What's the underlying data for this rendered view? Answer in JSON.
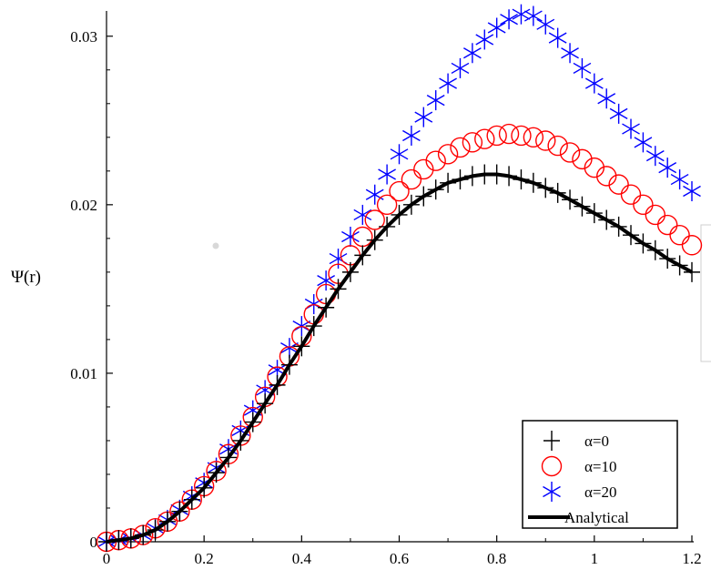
{
  "chart_data": {
    "type": "scatter",
    "title": "",
    "xlabel": "",
    "ylabel": "Ψ(r)",
    "xlim": [
      0,
      1.2
    ],
    "ylim": [
      0,
      0.0315
    ],
    "grid": false,
    "legend_position": "bottom-right",
    "x_ticks": [
      {
        "value": 0,
        "label": "0"
      },
      {
        "value": 0.2,
        "label": "0.2"
      },
      {
        "value": 0.4,
        "label": "0.4"
      },
      {
        "value": 0.6,
        "label": "0.6"
      },
      {
        "value": 0.8,
        "label": "0.8"
      },
      {
        "value": 1.0,
        "label": "1"
      },
      {
        "value": 1.2,
        "label": "1.2"
      }
    ],
    "y_ticks": [
      {
        "value": 0,
        "label": "0"
      },
      {
        "value": 0.01,
        "label": "0.01"
      },
      {
        "value": 0.02,
        "label": "0.02"
      },
      {
        "value": 0.03,
        "label": "0.03"
      }
    ],
    "x": [
      0,
      0.025,
      0.05,
      0.075,
      0.1,
      0.125,
      0.15,
      0.175,
      0.2,
      0.225,
      0.25,
      0.275,
      0.3,
      0.325,
      0.35,
      0.375,
      0.4,
      0.425,
      0.45,
      0.475,
      0.5,
      0.525,
      0.55,
      0.575,
      0.6,
      0.625,
      0.65,
      0.675,
      0.7,
      0.725,
      0.75,
      0.775,
      0.8,
      0.825,
      0.85,
      0.875,
      0.9,
      0.925,
      0.95,
      0.975,
      1.0,
      1.025,
      1.05,
      1.075,
      1.1,
      1.125,
      1.15,
      1.175,
      1.2
    ],
    "series": [
      {
        "name": "α=0",
        "marker": "plus",
        "color": "#000000",
        "values": [
          0,
          0.0001,
          0.0002,
          0.0004,
          0.0007,
          0.0012,
          0.0018,
          0.0025,
          0.0032,
          0.0041,
          0.005,
          0.006,
          0.0071,
          0.0082,
          0.0093,
          0.0105,
          0.0116,
          0.0128,
          0.0139,
          0.015,
          0.016,
          0.017,
          0.0179,
          0.0187,
          0.0194,
          0.02,
          0.0205,
          0.0209,
          0.0213,
          0.0215,
          0.0217,
          0.0218,
          0.0218,
          0.0217,
          0.0215,
          0.0213,
          0.021,
          0.0207,
          0.0203,
          0.0199,
          0.0195,
          0.0191,
          0.0187,
          0.0182,
          0.0177,
          0.0173,
          0.0168,
          0.0164,
          0.016
        ]
      },
      {
        "name": "α=10",
        "marker": "circle",
        "color": "#ff0000",
        "values": [
          0,
          0.0001,
          0.0002,
          0.0004,
          0.0008,
          0.0012,
          0.0018,
          0.0025,
          0.0033,
          0.0042,
          0.0052,
          0.0063,
          0.0074,
          0.0086,
          0.0098,
          0.011,
          0.0122,
          0.0135,
          0.0147,
          0.0159,
          0.017,
          0.0181,
          0.0191,
          0.02,
          0.0208,
          0.0215,
          0.0221,
          0.0226,
          0.023,
          0.0234,
          0.0237,
          0.0239,
          0.0241,
          0.0242,
          0.0241,
          0.024,
          0.0238,
          0.0235,
          0.0231,
          0.0227,
          0.0222,
          0.0217,
          0.0212,
          0.0206,
          0.02,
          0.0194,
          0.0188,
          0.0182,
          0.0176
        ]
      },
      {
        "name": "α=20",
        "marker": "asterisk",
        "color": "#0000ff",
        "values": [
          0,
          0.0001,
          0.0002,
          0.0004,
          0.0008,
          0.0013,
          0.0019,
          0.0027,
          0.0035,
          0.0044,
          0.0055,
          0.0066,
          0.0078,
          0.009,
          0.0102,
          0.0115,
          0.0128,
          0.0141,
          0.0155,
          0.0168,
          0.0181,
          0.0194,
          0.0206,
          0.0218,
          0.023,
          0.0241,
          0.0252,
          0.0262,
          0.0272,
          0.0281,
          0.029,
          0.0298,
          0.0305,
          0.031,
          0.0313,
          0.0312,
          0.0307,
          0.0299,
          0.029,
          0.0281,
          0.0272,
          0.0263,
          0.0254,
          0.0245,
          0.0237,
          0.0229,
          0.0222,
          0.0215,
          0.0208
        ]
      },
      {
        "name": "Analytical",
        "marker": "line",
        "color": "#000000",
        "values": [
          0,
          0.0001,
          0.0002,
          0.0004,
          0.0007,
          0.0012,
          0.0018,
          0.0025,
          0.0032,
          0.0041,
          0.005,
          0.006,
          0.0071,
          0.0082,
          0.0093,
          0.0105,
          0.0116,
          0.0128,
          0.0139,
          0.015,
          0.016,
          0.017,
          0.0179,
          0.0187,
          0.0194,
          0.02,
          0.0205,
          0.0209,
          0.0213,
          0.0215,
          0.0217,
          0.0218,
          0.0218,
          0.0217,
          0.0215,
          0.0213,
          0.021,
          0.0207,
          0.0203,
          0.0199,
          0.0195,
          0.0191,
          0.0187,
          0.0182,
          0.0177,
          0.0173,
          0.0168,
          0.0164,
          0.016
        ]
      }
    ]
  }
}
